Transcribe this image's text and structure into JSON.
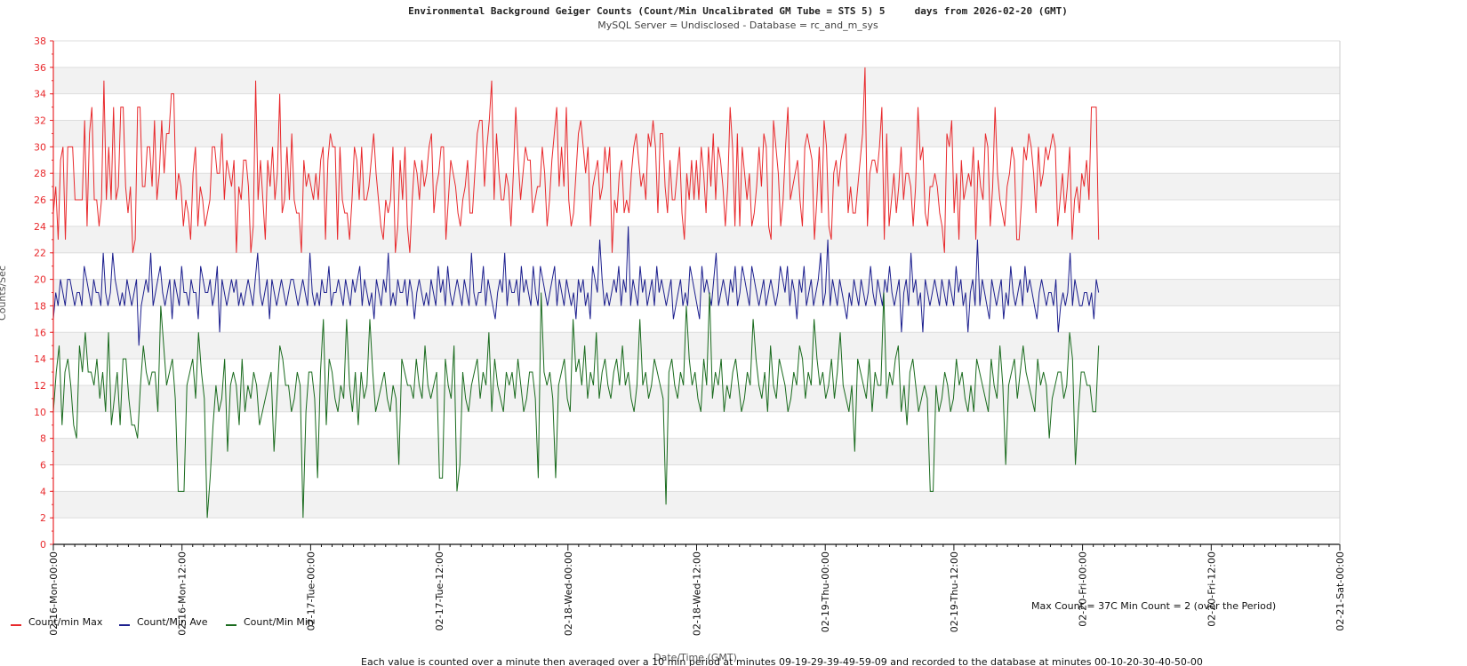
{
  "chart_data": {
    "type": "line",
    "title": "Environmental Background Geiger Counts (Count/Min Uncalibrated GM Tube = STS 5) 5     days from 2026-02-20 (GMT)",
    "subtitle": "MySQL Server = Undisclosed - Database = rc_and_m_sys",
    "xlabel": "Date/Time (GMT)",
    "ylabel": "Counts/Sec",
    "ylim": [
      0,
      38
    ],
    "ytick_step": 2,
    "x_ticks": [
      "02-16-Mon-00:00",
      "02-16-Mon-12:00",
      "02-17-Tue-00:00",
      "02-17-Tue-12:00",
      "02-18-Wed-00:00",
      "02-18-Wed-12:00",
      "02-19-Thu-00:00",
      "02-19-Thu-12:00",
      "02-20-Fri-00:00",
      "02-20-Fri-12:00",
      "02-21-Sat-00:00"
    ],
    "xlim_hours": [
      0,
      120
    ],
    "data_end_hours": 97.5,
    "series": [
      {
        "name": "Count/min Max",
        "color": "#e8292c",
        "values": [
          25,
          27,
          23,
          29,
          30,
          23,
          30,
          30,
          30,
          26,
          26,
          26,
          26,
          32,
          24,
          31,
          33,
          26,
          26,
          24,
          26,
          35,
          26,
          30,
          26,
          33,
          26,
          27,
          33,
          33,
          27,
          25,
          27,
          22,
          23,
          33,
          33,
          27,
          27,
          30,
          30,
          27,
          32,
          26,
          28,
          32,
          28,
          31,
          31,
          34,
          34,
          26,
          28,
          27,
          24,
          26,
          25,
          23,
          28,
          30,
          24,
          27,
          26,
          24,
          25,
          26,
          30,
          30,
          28,
          28,
          31,
          26,
          29,
          28,
          27,
          29,
          22,
          27,
          26,
          29,
          29,
          27,
          22,
          24,
          35,
          26,
          29,
          26,
          23,
          29,
          27,
          30,
          26,
          28,
          34,
          25,
          26,
          30,
          26,
          31,
          26,
          25,
          25,
          22,
          29,
          27,
          28,
          27,
          26,
          28,
          26,
          29,
          30,
          23,
          29,
          31,
          30,
          30,
          23,
          30,
          26,
          25,
          25,
          23,
          26,
          30,
          29,
          26,
          30,
          26,
          26,
          27,
          29,
          31,
          28,
          26,
          24,
          23,
          26,
          25,
          26,
          30,
          22,
          24,
          29,
          26,
          30,
          24,
          22,
          26,
          29,
          28,
          26,
          29,
          27,
          28,
          30,
          31,
          25,
          27,
          28,
          30,
          30,
          23,
          26,
          29,
          28,
          27,
          25,
          24,
          26,
          27,
          29,
          25,
          25,
          28,
          31,
          32,
          32,
          27,
          30,
          32,
          35,
          26,
          31,
          28,
          26,
          26,
          28,
          27,
          24,
          28,
          33,
          29,
          26,
          28,
          30,
          29,
          29,
          25,
          26,
          27,
          27,
          30,
          28,
          24,
          26,
          29,
          31,
          33,
          27,
          30,
          27,
          33,
          26,
          24,
          25,
          28,
          31,
          32,
          30,
          28,
          30,
          24,
          27,
          28,
          29,
          26,
          27,
          30,
          28,
          30,
          22,
          26,
          25,
          28,
          29,
          25,
          26,
          25,
          28,
          30,
          31,
          29,
          27,
          28,
          26,
          31,
          30,
          32,
          30,
          25,
          31,
          31,
          27,
          25,
          29,
          26,
          26,
          28,
          30,
          25,
          23,
          28,
          26,
          29,
          26,
          29,
          26,
          30,
          28,
          25,
          30,
          27,
          31,
          26,
          30,
          29,
          27,
          24,
          27,
          33,
          30,
          24,
          31,
          24,
          30,
          28,
          26,
          28,
          24,
          25,
          27,
          30,
          27,
          31,
          30,
          24,
          23,
          32,
          30,
          28,
          24,
          26,
          30,
          33,
          26,
          27,
          28,
          29,
          26,
          24,
          30,
          31,
          30,
          29,
          23,
          26,
          30,
          25,
          32,
          30,
          24,
          23,
          28,
          29,
          27,
          29,
          30,
          31,
          25,
          27,
          25,
          25,
          27,
          29,
          31,
          36,
          24,
          28,
          29,
          29,
          28,
          30,
          33,
          23,
          31,
          24,
          26,
          28,
          25,
          27,
          30,
          26,
          28,
          28,
          27,
          24,
          27,
          33,
          29,
          30,
          25,
          24,
          27,
          27,
          28,
          27,
          25,
          24,
          22,
          31,
          30,
          32,
          25,
          28,
          23,
          29,
          26,
          27,
          28,
          27,
          30,
          23,
          29,
          27,
          26,
          31,
          30,
          24,
          27,
          33,
          28,
          26,
          25,
          24,
          27,
          28,
          30,
          29,
          23,
          23,
          26,
          30,
          29,
          31,
          30,
          28,
          25,
          30,
          27,
          28,
          30,
          29,
          30,
          31,
          30,
          24,
          26,
          28,
          25,
          27,
          30,
          23,
          26,
          27,
          25,
          28,
          27,
          29,
          26,
          33,
          33,
          33,
          23
        ]
      },
      {
        "name": "Count/Min Ave",
        "color": "#1c1f8e",
        "values": [
          17,
          19,
          18,
          20,
          19,
          18,
          20,
          20,
          19,
          18,
          19,
          19,
          18,
          21,
          20,
          19,
          18,
          20,
          19,
          19,
          18,
          22,
          19,
          18,
          19,
          22,
          20,
          19,
          18,
          19,
          18,
          20,
          19,
          18,
          19,
          20,
          15,
          18,
          19,
          20,
          19,
          22,
          18,
          19,
          20,
          21,
          19,
          18,
          19,
          20,
          17,
          20,
          19,
          18,
          21,
          19,
          19,
          18,
          20,
          19,
          19,
          17,
          21,
          20,
          19,
          19,
          20,
          18,
          19,
          21,
          16,
          20,
          19,
          18,
          19,
          20,
          19,
          20,
          18,
          19,
          18,
          19,
          20,
          19,
          18,
          20,
          22,
          19,
          18,
          19,
          20,
          17,
          20,
          19,
          18,
          19,
          20,
          19,
          18,
          19,
          20,
          20,
          19,
          18,
          19,
          20,
          19,
          18,
          22,
          19,
          18,
          19,
          18,
          20,
          19,
          19,
          21,
          18,
          19,
          19,
          20,
          19,
          18,
          20,
          19,
          18,
          20,
          19,
          20,
          21,
          18,
          20,
          19,
          18,
          19,
          17,
          20,
          19,
          18,
          20,
          19,
          22,
          18,
          19,
          18,
          20,
          19,
          19,
          20,
          18,
          20,
          19,
          17,
          19,
          20,
          19,
          18,
          19,
          18,
          20,
          19,
          18,
          21,
          19,
          20,
          18,
          21,
          19,
          18,
          19,
          20,
          19,
          18,
          20,
          19,
          18,
          22,
          19,
          18,
          19,
          19,
          21,
          18,
          20,
          19,
          18,
          17,
          19,
          20,
          19,
          22,
          18,
          20,
          19,
          19,
          20,
          18,
          21,
          19,
          20,
          19,
          18,
          21,
          19,
          18,
          21,
          20,
          19,
          18,
          19,
          20,
          21,
          18,
          20,
          19,
          18,
          20,
          19,
          18,
          19,
          17,
          20,
          19,
          20,
          18,
          19,
          17,
          21,
          20,
          19,
          23,
          20,
          18,
          19,
          18,
          19,
          20,
          19,
          21,
          18,
          20,
          19,
          24,
          18,
          20,
          19,
          18,
          21,
          19,
          20,
          18,
          19,
          20,
          18,
          21,
          19,
          20,
          19,
          18,
          19,
          20,
          17,
          18,
          19,
          20,
          18,
          19,
          18,
          21,
          20,
          19,
          18,
          17,
          21,
          19,
          20,
          19,
          18,
          20,
          22,
          18,
          19,
          20,
          19,
          18,
          20,
          19,
          21,
          18,
          19,
          21,
          20,
          19,
          18,
          21,
          20,
          19,
          18,
          19,
          20,
          18,
          19,
          20,
          19,
          18,
          19,
          21,
          20,
          19,
          21,
          18,
          20,
          19,
          17,
          20,
          19,
          21,
          18,
          19,
          20,
          18,
          19,
          20,
          22,
          18,
          19,
          23,
          18,
          20,
          19,
          18,
          20,
          19,
          18,
          17,
          19,
          18,
          20,
          19,
          18,
          20,
          19,
          18,
          19,
          21,
          19,
          18,
          20,
          19,
          18,
          20,
          19,
          21,
          19,
          18,
          19,
          20,
          16,
          19,
          20,
          18,
          22,
          19,
          20,
          18,
          19,
          16,
          20,
          19,
          18,
          19,
          20,
          19,
          18,
          20,
          19,
          18,
          20,
          19,
          18,
          21,
          19,
          20,
          18,
          19,
          16,
          19,
          20,
          18,
          23,
          18,
          20,
          19,
          18,
          17,
          20,
          19,
          18,
          19,
          20,
          17,
          19,
          18,
          21,
          19,
          18,
          19,
          20,
          18,
          21,
          19,
          20,
          19,
          18,
          17,
          19,
          20,
          19,
          18,
          19,
          19,
          18,
          20,
          16,
          18,
          19,
          18,
          19,
          22,
          18,
          20,
          19,
          18,
          18,
          19,
          19,
          18,
          19,
          17,
          20,
          19
        ]
      },
      {
        "name": "Count/Min Min",
        "color": "#1a6b1e",
        "values": [
          10,
          13,
          15,
          9,
          13,
          14,
          12,
          9,
          8,
          15,
          13,
          16,
          13,
          13,
          12,
          14,
          11,
          13,
          10,
          16,
          9,
          11,
          13,
          9,
          14,
          14,
          11,
          9,
          9,
          8,
          12,
          15,
          13,
          12,
          13,
          13,
          10,
          18,
          15,
          12,
          13,
          14,
          11,
          4,
          4,
          4,
          12,
          13,
          14,
          11,
          16,
          13,
          11,
          2,
          5,
          9,
          12,
          10,
          11,
          14,
          7,
          12,
          13,
          12,
          9,
          14,
          10,
          12,
          11,
          13,
          12,
          9,
          10,
          11,
          12,
          13,
          7,
          11,
          15,
          14,
          12,
          12,
          10,
          11,
          13,
          12,
          2,
          10,
          13,
          13,
          11,
          5,
          13,
          17,
          9,
          14,
          13,
          11,
          10,
          12,
          11,
          17,
          12,
          10,
          13,
          9,
          13,
          11,
          12,
          17,
          13,
          10,
          11,
          12,
          13,
          11,
          10,
          12,
          11,
          6,
          14,
          13,
          12,
          12,
          11,
          14,
          12,
          11,
          15,
          12,
          11,
          12,
          13,
          5,
          5,
          14,
          12,
          11,
          15,
          4,
          6,
          13,
          11,
          10,
          12,
          13,
          14,
          11,
          13,
          12,
          16,
          10,
          14,
          12,
          11,
          10,
          13,
          12,
          13,
          11,
          14,
          12,
          10,
          11,
          13,
          13,
          11,
          5,
          19,
          13,
          12,
          13,
          11,
          5,
          12,
          13,
          14,
          11,
          10,
          17,
          13,
          14,
          12,
          15,
          11,
          13,
          12,
          16,
          11,
          13,
          14,
          12,
          11,
          13,
          14,
          12,
          15,
          12,
          13,
          11,
          10,
          12,
          17,
          12,
          13,
          11,
          12,
          14,
          13,
          12,
          11,
          3,
          13,
          14,
          12,
          11,
          13,
          12,
          18,
          14,
          12,
          13,
          11,
          10,
          14,
          12,
          19,
          11,
          13,
          12,
          14,
          10,
          12,
          11,
          13,
          14,
          12,
          10,
          11,
          13,
          12,
          17,
          14,
          12,
          11,
          13,
          10,
          15,
          12,
          11,
          14,
          13,
          12,
          10,
          11,
          13,
          12,
          15,
          14,
          11,
          13,
          12,
          17,
          14,
          12,
          13,
          11,
          12,
          14,
          11,
          13,
          16,
          12,
          11,
          10,
          12,
          7,
          14,
          13,
          12,
          11,
          14,
          10,
          13,
          12,
          12,
          19,
          11,
          13,
          12,
          14,
          15,
          10,
          12,
          9,
          13,
          14,
          12,
          10,
          11,
          12,
          11,
          4,
          4,
          12,
          10,
          11,
          13,
          12,
          10,
          11,
          14,
          12,
          13,
          11,
          10,
          12,
          10,
          14,
          13,
          12,
          11,
          10,
          14,
          12,
          11,
          15,
          12,
          6,
          12,
          13,
          14,
          11,
          13,
          15,
          13,
          12,
          11,
          10,
          14,
          12,
          13,
          12,
          8,
          11,
          12,
          13,
          13,
          11,
          12,
          16,
          14,
          6,
          10,
          13,
          13,
          12,
          12,
          10,
          10,
          15
        ]
      }
    ]
  },
  "legend": {
    "items": [
      {
        "label": "Count/min Max",
        "color": "#e8292c"
      },
      {
        "label": "Count/Min Ave",
        "color": "#1c1f8e"
      },
      {
        "label": "Count/Min Min",
        "color": "#1a6b1e"
      }
    ]
  },
  "notes": {
    "max_min": "Max Count = 37C Min Count = 2 (over the Period)",
    "footer": "Each value is counted over a minute then averaged over a 10 min period at minutes 09-19-29-39-49-59-09 and recorded to the database at minutes 00-10-20-30-40-50-00"
  },
  "colors": {
    "axis": "#e8292c",
    "band": "#f2f2f2",
    "grid": "#dddddd"
  }
}
